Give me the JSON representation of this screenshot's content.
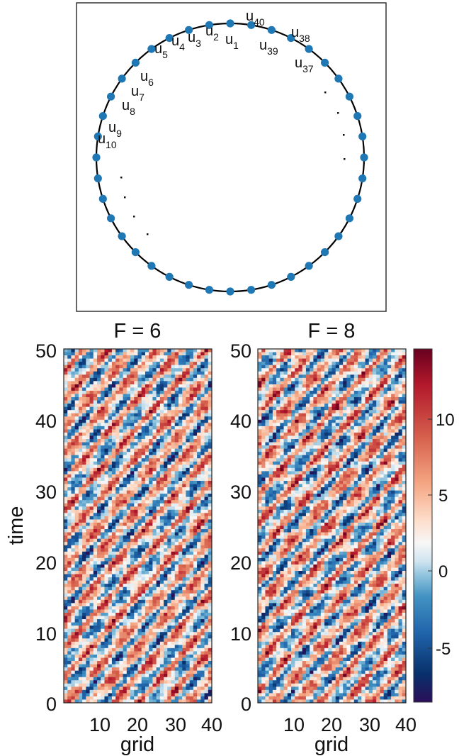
{
  "chart_data": [
    {
      "type": "diagram",
      "nodes_total": 40,
      "node_labels": [
        {
          "base": "u",
          "sub": "1"
        },
        {
          "base": "u",
          "sub": "2"
        },
        {
          "base": "u",
          "sub": "3"
        },
        {
          "base": "u",
          "sub": "4"
        },
        {
          "base": "u",
          "sub": "5"
        },
        {
          "base": "u",
          "sub": "6"
        },
        {
          "base": "u",
          "sub": "7"
        },
        {
          "base": "u",
          "sub": "8"
        },
        {
          "base": "u",
          "sub": "9"
        },
        {
          "base": "u",
          "sub": "10"
        },
        {
          "base": "u",
          "sub": "37"
        },
        {
          "base": "u",
          "sub": "38"
        },
        {
          "base": "u",
          "sub": "39"
        },
        {
          "base": "u",
          "sub": "40"
        }
      ],
      "node_color": "#1f77b4",
      "ring_color": "#000000"
    },
    {
      "type": "heatmap",
      "title": "F = 6",
      "xlabel": "grid",
      "ylabel": "time",
      "x_ticks": [
        10,
        20,
        30,
        40
      ],
      "y_ticks": [
        0,
        10,
        20,
        30,
        40,
        50
      ],
      "xlim": [
        1,
        40
      ],
      "ylim": [
        0,
        50
      ]
    },
    {
      "type": "heatmap",
      "title": "F = 8",
      "xlabel": "grid",
      "ylabel": "",
      "x_ticks": [
        10,
        20,
        30,
        40
      ],
      "y_ticks": [
        0,
        10,
        20,
        30,
        40,
        50
      ],
      "xlim": [
        1,
        40
      ],
      "ylim": [
        0,
        50
      ]
    }
  ],
  "colorbar": {
    "ticks": [
      -5,
      0,
      5,
      10
    ],
    "range": [
      -9,
      14
    ],
    "colormap": [
      "#2b0f5a",
      "#08306b",
      "#2166ac",
      "#4393c3",
      "#92c5de",
      "#d1e5f0",
      "#f7f7f7",
      "#fddbc7",
      "#f4a582",
      "#d6604d",
      "#b2182b",
      "#67001f"
    ]
  }
}
